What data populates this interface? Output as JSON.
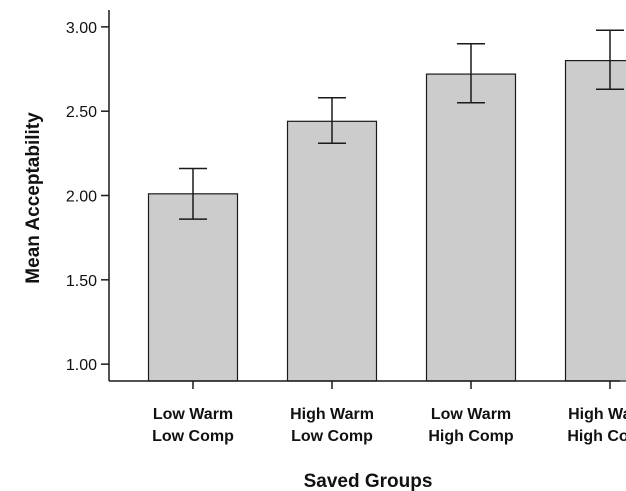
{
  "chart_data": {
    "type": "bar",
    "title": "",
    "xlabel": "Saved Groups",
    "ylabel": "Mean Acceptability",
    "categories": [
      [
        "Low Warm",
        "Low Comp"
      ],
      [
        "High Warm",
        "Low Comp"
      ],
      [
        "Low Warm",
        "High Comp"
      ],
      [
        "High Warm",
        "High Comp"
      ]
    ],
    "values": [
      2.01,
      2.44,
      2.72,
      2.8
    ],
    "error_low": [
      1.86,
      2.31,
      2.55,
      2.63
    ],
    "error_high": [
      2.16,
      2.58,
      2.9,
      2.98
    ],
    "ylim": [
      0.9,
      3.1
    ],
    "yticks": [
      1.0,
      1.5,
      2.0,
      2.5,
      3.0
    ],
    "ytick_labels": [
      "1.00",
      "1.50",
      "2.00",
      "2.50",
      "3.00"
    ],
    "grid": false,
    "legend": "none",
    "colors": {
      "bar_fill": "#cccccc",
      "bar_stroke": "#1a1a1a",
      "axis": "#1a1a1a",
      "error_bar": "#1a1a1a"
    }
  }
}
